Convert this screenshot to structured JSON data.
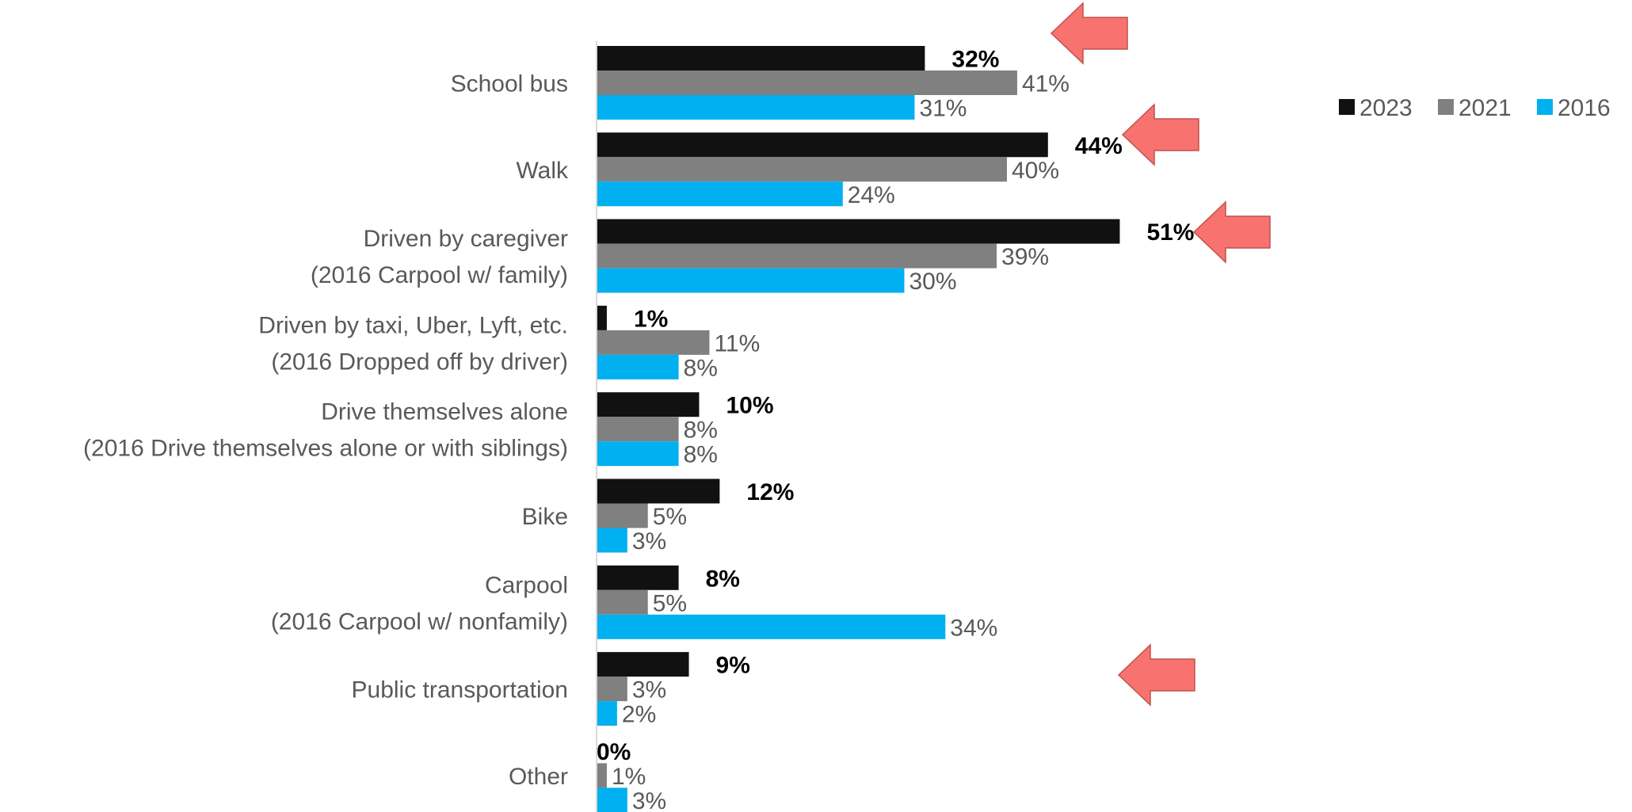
{
  "chart_data": {
    "type": "bar",
    "orientation": "horizontal",
    "categories": [
      [
        "School bus"
      ],
      [
        "Walk"
      ],
      [
        "Driven by caregiver",
        "(2016 Carpool w/ family)"
      ],
      [
        "Driven by taxi, Uber, Lyft, etc.",
        "(2016 Dropped off by driver)"
      ],
      [
        "Drive themselves alone",
        "(2016 Drive themselves alone or with siblings)"
      ],
      [
        "Bike"
      ],
      [
        "Carpool",
        "(2016 Carpool w/ nonfamily)"
      ],
      [
        "Public transportation"
      ],
      [
        "Other"
      ]
    ],
    "series": [
      {
        "name": "2023",
        "color": "#111111",
        "bold_labels": true,
        "values": [
          32,
          44,
          51,
          1,
          10,
          12,
          8,
          9,
          0
        ],
        "labels": [
          "32%",
          "44%",
          "51%",
          "1%",
          "10%",
          "12%",
          "8%",
          "9%",
          "0%"
        ]
      },
      {
        "name": "2021",
        "color": "#808080",
        "bold_labels": false,
        "values": [
          41,
          40,
          39,
          11,
          8,
          5,
          5,
          3,
          1
        ],
        "labels": [
          "41%",
          "40%",
          "39%",
          "11%",
          "8%",
          "5%",
          "5%",
          "3%",
          "1%"
        ]
      },
      {
        "name": "2016",
        "color": "#00B0F0",
        "bold_labels": false,
        "values": [
          31,
          24,
          30,
          8,
          8,
          3,
          34,
          2,
          3
        ],
        "labels": [
          "31%",
          "24%",
          "30%",
          "8%",
          "8%",
          "3%",
          "34%",
          "2%",
          "3%"
        ]
      }
    ],
    "xlim": [
      0,
      60
    ],
    "legend_position": "top-right",
    "highlight_arrows": {
      "categories": [
        0,
        1,
        2,
        7
      ],
      "color": "#F8736F",
      "direction": "left"
    },
    "grid": false
  }
}
